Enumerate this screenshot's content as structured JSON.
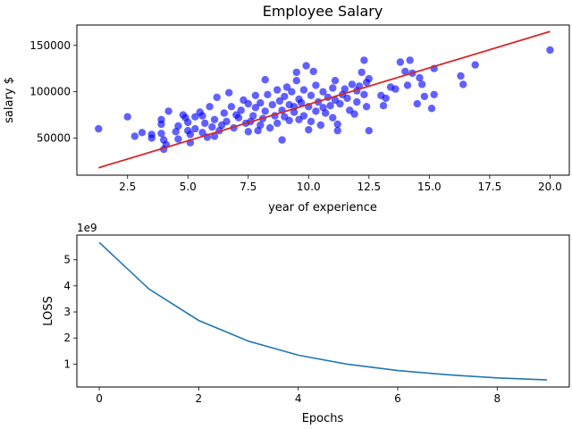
{
  "chart_data": [
    {
      "type": "scatter",
      "title": "Employee Salary",
      "xlabel": "year of experience",
      "ylabel": "salary $",
      "xlim": [
        0.4,
        20.8
      ],
      "ylim": [
        10000,
        172000
      ],
      "xticks": [
        2.5,
        5.0,
        7.5,
        10.0,
        12.5,
        15.0,
        17.5,
        20.0
      ],
      "xtick_labels": [
        "2.5",
        "5.0",
        "7.5",
        "10.0",
        "12.5",
        "15.0",
        "17.5",
        "20.0"
      ],
      "yticks": [
        50000,
        100000,
        150000
      ],
      "ytick_labels": [
        "50000",
        "100000",
        "150000"
      ],
      "grid": false,
      "legend": "none",
      "colors": {
        "points": "#0000ff",
        "fit_line": "#d62728"
      },
      "fit_line": {
        "x": [
          1.3,
          20.0
        ],
        "y": [
          18000,
          165000
        ]
      },
      "points": [
        [
          1.3,
          60000
        ],
        [
          2.5,
          73000
        ],
        [
          2.8,
          52000
        ],
        [
          3.1,
          56000
        ],
        [
          3.5,
          54000
        ],
        [
          3.5,
          50000
        ],
        [
          3.9,
          70000
        ],
        [
          3.9,
          65000
        ],
        [
          3.9,
          55000
        ],
        [
          4.0,
          48000
        ],
        [
          4.0,
          38000
        ],
        [
          4.1,
          43000
        ],
        [
          4.2,
          79000
        ],
        [
          4.5,
          57000
        ],
        [
          4.6,
          49000
        ],
        [
          4.6,
          63000
        ],
        [
          4.8,
          75000
        ],
        [
          4.9,
          72000
        ],
        [
          5.0,
          67000
        ],
        [
          5.0,
          58000
        ],
        [
          5.1,
          54000
        ],
        [
          5.1,
          45000
        ],
        [
          5.3,
          73000
        ],
        [
          5.3,
          60000
        ],
        [
          5.5,
          78000
        ],
        [
          5.6,
          74000
        ],
        [
          5.6,
          56000
        ],
        [
          5.7,
          66000
        ],
        [
          5.8,
          51000
        ],
        [
          5.9,
          84000
        ],
        [
          6.0,
          62000
        ],
        [
          6.1,
          52000
        ],
        [
          6.1,
          70000
        ],
        [
          6.2,
          94000
        ],
        [
          6.3,
          58000
        ],
        [
          6.4,
          64000
        ],
        [
          6.5,
          77000
        ],
        [
          6.6,
          68000
        ],
        [
          6.7,
          99000
        ],
        [
          6.8,
          84000
        ],
        [
          6.9,
          61000
        ],
        [
          7.0,
          75000
        ],
        [
          7.1,
          72000
        ],
        [
          7.2,
          80000
        ],
        [
          7.3,
          91000
        ],
        [
          7.4,
          66000
        ],
        [
          7.5,
          57000
        ],
        [
          7.5,
          87000
        ],
        [
          7.6,
          68000
        ],
        [
          7.7,
          74000
        ],
        [
          7.8,
          83000
        ],
        [
          7.8,
          96000
        ],
        [
          7.9,
          58000
        ],
        [
          8.0,
          64000
        ],
        [
          8.0,
          88000
        ],
        [
          8.1,
          71000
        ],
        [
          8.2,
          113000
        ],
        [
          8.2,
          79000
        ],
        [
          8.3,
          97000
        ],
        [
          8.4,
          61000
        ],
        [
          8.5,
          86000
        ],
        [
          8.6,
          74000
        ],
        [
          8.7,
          102000
        ],
        [
          8.7,
          66000
        ],
        [
          8.8,
          90000
        ],
        [
          8.9,
          80000
        ],
        [
          8.9,
          48000
        ],
        [
          9.0,
          95000
        ],
        [
          9.0,
          73000
        ],
        [
          9.1,
          105000
        ],
        [
          9.2,
          69000
        ],
        [
          9.2,
          86000
        ],
        [
          9.3,
          100000
        ],
        [
          9.4,
          84000
        ],
        [
          9.4,
          78000
        ],
        [
          9.5,
          121000
        ],
        [
          9.5,
          112000
        ],
        [
          9.6,
          92000
        ],
        [
          9.6,
          70000
        ],
        [
          9.7,
          88000
        ],
        [
          9.8,
          74000
        ],
        [
          9.8,
          102000
        ],
        [
          9.9,
          128000
        ],
        [
          10.0,
          84000
        ],
        [
          10.0,
          59000
        ],
        [
          10.1,
          96000
        ],
        [
          10.1,
          68000
        ],
        [
          10.2,
          122000
        ],
        [
          10.3,
          107000
        ],
        [
          10.3,
          79000
        ],
        [
          10.4,
          89000
        ],
        [
          10.5,
          64000
        ],
        [
          10.6,
          100000
        ],
        [
          10.6,
          83000
        ],
        [
          10.7,
          77000
        ],
        [
          10.8,
          94000
        ],
        [
          10.9,
          85000
        ],
        [
          11.0,
          104000
        ],
        [
          11.0,
          72000
        ],
        [
          11.1,
          112000
        ],
        [
          11.1,
          91000
        ],
        [
          11.2,
          58000
        ],
        [
          11.2,
          65000
        ],
        [
          11.3,
          87000
        ],
        [
          11.4,
          97000
        ],
        [
          11.5,
          103000
        ],
        [
          11.6,
          93000
        ],
        [
          11.7,
          80000
        ],
        [
          11.8,
          108000
        ],
        [
          11.9,
          76000
        ],
        [
          12.0,
          101000
        ],
        [
          12.0,
          89000
        ],
        [
          12.1,
          106000
        ],
        [
          12.2,
          121000
        ],
        [
          12.3,
          134000
        ],
        [
          12.3,
          97000
        ],
        [
          12.4,
          84000
        ],
        [
          12.4,
          110000
        ],
        [
          12.5,
          114000
        ],
        [
          12.5,
          58000
        ],
        [
          13.0,
          96000
        ],
        [
          13.1,
          85000
        ],
        [
          13.2,
          93000
        ],
        [
          13.4,
          105000
        ],
        [
          13.6,
          103000
        ],
        [
          13.8,
          132000
        ],
        [
          14.0,
          122000
        ],
        [
          14.1,
          107000
        ],
        [
          14.2,
          134000
        ],
        [
          14.3,
          120000
        ],
        [
          14.5,
          87000
        ],
        [
          14.6,
          115000
        ],
        [
          14.7,
          108000
        ],
        [
          14.8,
          95000
        ],
        [
          15.1,
          82000
        ],
        [
          15.2,
          125000
        ],
        [
          15.2,
          97000
        ],
        [
          16.3,
          117000
        ],
        [
          16.4,
          108000
        ],
        [
          16.9,
          129000
        ],
        [
          20.0,
          145000
        ]
      ]
    },
    {
      "type": "line",
      "title": "",
      "xlabel": "Epochs",
      "ylabel": "LOSS",
      "offset_label": "1e9",
      "xlim": [
        -0.45,
        9.45
      ],
      "ylim": [
        0.12,
        5.95
      ],
      "xticks": [
        0,
        2,
        4,
        6,
        8
      ],
      "xtick_labels": [
        "0",
        "2",
        "4",
        "6",
        "8"
      ],
      "yticks": [
        1,
        2,
        3,
        4,
        5
      ],
      "ytick_labels": [
        "1",
        "2",
        "3",
        "4",
        "5"
      ],
      "grid": false,
      "legend": "none",
      "colors": {
        "line": "#1f77b4"
      },
      "x": [
        0,
        1,
        2,
        3,
        4,
        5,
        6,
        7,
        8,
        9
      ],
      "y": [
        5.67,
        3.88,
        2.67,
        1.88,
        1.34,
        0.99,
        0.75,
        0.59,
        0.47,
        0.39
      ]
    }
  ]
}
